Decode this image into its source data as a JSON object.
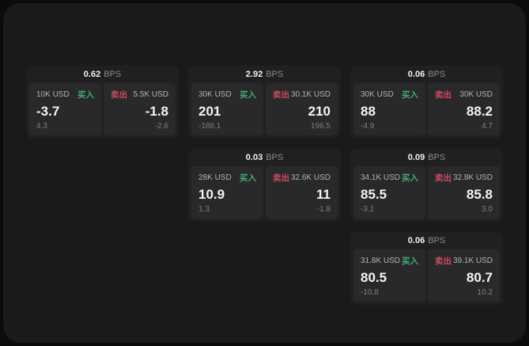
{
  "labels": {
    "bps": "BPS",
    "buy": "买入",
    "sell": "卖出"
  },
  "colors": {
    "buy": "#3fae75",
    "sell": "#cc4b5e",
    "surface": "#1a1a1c",
    "card": "#202022",
    "panel": "#29292b"
  },
  "cards": [
    {
      "bps": "0.62",
      "buy": {
        "size": "10K USD",
        "price": "-3.7",
        "sub": "4.3"
      },
      "sell": {
        "size": "5.5K USD",
        "price": "-1.8",
        "sub": "-2.6"
      }
    },
    {
      "bps": "2.92",
      "buy": {
        "size": "30K USD",
        "price": "201",
        "sub": "-188.1"
      },
      "sell": {
        "size": "30.1K USD",
        "price": "210",
        "sub": "196.5"
      }
    },
    {
      "bps": "0.06",
      "buy": {
        "size": "30K USD",
        "price": "88",
        "sub": "-4.9"
      },
      "sell": {
        "size": "30K USD",
        "price": "88.2",
        "sub": "4.7"
      }
    },
    {
      "bps": "0.03",
      "buy": {
        "size": "28K USD",
        "price": "10.9",
        "sub": "1.3"
      },
      "sell": {
        "size": "32.6K USD",
        "price": "11",
        "sub": "-1.8"
      }
    },
    {
      "bps": "0.09",
      "buy": {
        "size": "34.1K USD",
        "price": "85.5",
        "sub": "-3.1"
      },
      "sell": {
        "size": "32.8K USD",
        "price": "85.8",
        "sub": "3.0"
      }
    },
    {
      "bps": "0.06",
      "buy": {
        "size": "31.8K USD",
        "price": "80.5",
        "sub": "-10.8"
      },
      "sell": {
        "size": "39.1K USD",
        "price": "80.7",
        "sub": "10.2"
      }
    }
  ]
}
